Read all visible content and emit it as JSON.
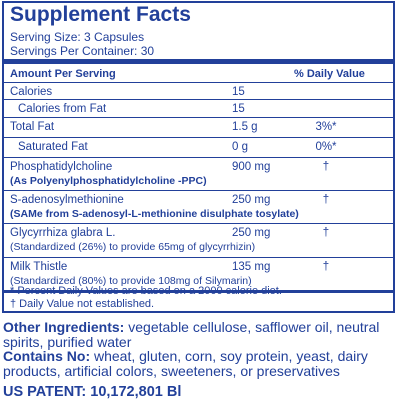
{
  "header": {
    "title": "Supplement Facts",
    "serving_size": "Serving Size: 3 Capsules",
    "servings_per_container": "Servings Per Container: 30"
  },
  "table": {
    "columns": [
      "Amount Per Serving",
      "% Daily Value"
    ],
    "rows": [
      {
        "name": "Calories",
        "amount": "15"
      },
      {
        "name": "Calories from Fat",
        "amount": "15"
      },
      {
        "name": "Total Fat",
        "amount": "1.5 g",
        "daily_value": "3%*"
      },
      {
        "name": "Saturated Fat",
        "amount": "0 g",
        "daily_value": "0%*"
      },
      {
        "name": "Phosphatidylcholine",
        "amount": "900 mg",
        "daily_value": "†",
        "note": "(As Polyenylphosphatidylcholine -PPC)"
      },
      {
        "name": "S-adenosylmethionine",
        "amount": "250 mg",
        "daily_value": "†",
        "note": "(SAMe from S-adenosyl-L-methionine disulphate tosylate)"
      },
      {
        "name": "Glycyrrhiza glabra L.",
        "amount": "250 mg",
        "daily_value": "†",
        "note": "(Standardized (26%) to provide 65mg of glycyrrhizin)"
      },
      {
        "name": "Milk Thistle",
        "amount": "135 mg",
        "daily_value": "†",
        "note": "(Standardized (80%) to provide 108mg of Silymarin)"
      }
    ]
  },
  "footnotes": [
    "* Percent Daily Values are based on a 2000 calorie diet.",
    "† Daily Value not established."
  ],
  "other_ingredients": {
    "label": "Other Ingredients:",
    "text": "vegetable cellulose, safflower oil, neutral spirits, purified water"
  },
  "contains_no": {
    "label": "Contains No:",
    "text": "wheat, gluten, corn, soy protein, yeast, dairy products, artificial colors, sweeteners, or preservatives"
  },
  "patent": "US PATENT: 10,172,801 Bl"
}
